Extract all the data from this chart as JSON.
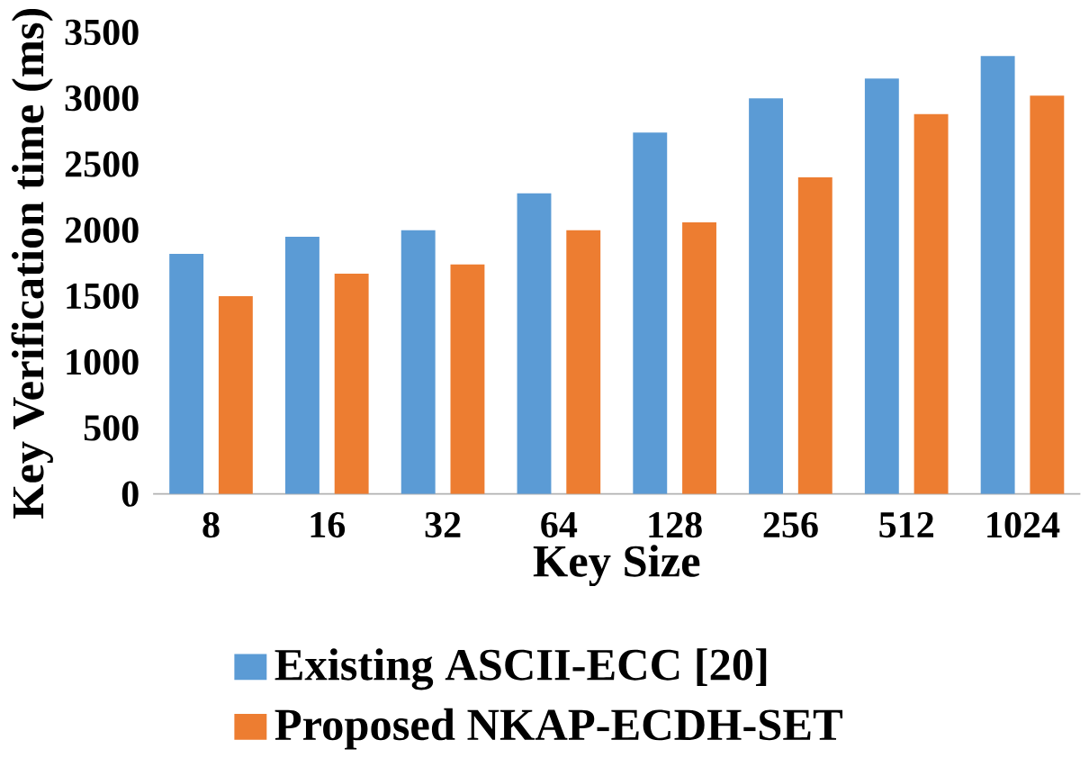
{
  "chart_data": {
    "type": "bar",
    "xlabel": "Key Size",
    "ylabel": "Key Verification time (ms)",
    "categories": [
      "8",
      "16",
      "32",
      "64",
      "128",
      "256",
      "512",
      "1024"
    ],
    "series": [
      {
        "name": "Existing ASCII-ECC [20]",
        "color": "#5b9bd5",
        "values": [
          1820,
          1950,
          2000,
          2280,
          2740,
          3000,
          3150,
          3320
        ]
      },
      {
        "name": "Proposed NKAP-ECDH-SET",
        "color": "#ed7d31",
        "values": [
          1500,
          1670,
          1740,
          2000,
          2060,
          2400,
          2880,
          3020
        ]
      }
    ],
    "ylim": [
      0,
      3500
    ],
    "yticks": [
      0,
      500,
      1000,
      1500,
      2000,
      2500,
      3000,
      3500
    ],
    "legend": "bottom"
  }
}
